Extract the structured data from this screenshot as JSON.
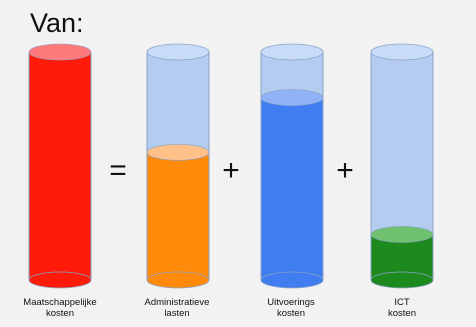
{
  "title": "Van:",
  "colors": {
    "background": "#f2f2f2",
    "empty_tube": "#a9c6f0",
    "outline": "#8aa3c6"
  },
  "operators": [
    "=",
    "+",
    "+"
  ],
  "cylinders": [
    {
      "label_line1": "Maatschappelijke",
      "label_line2": "kosten",
      "fill_fraction": 1.0,
      "fill_color": "#ff1a0a",
      "top_color": "#ff7a7a"
    },
    {
      "label_line1": "Administratieve",
      "label_line2": "lasten",
      "fill_fraction": 0.56,
      "fill_color": "#ff8a0a",
      "top_color": "#ffc08a"
    },
    {
      "label_line1": "Uitvoerings",
      "label_line2": "kosten",
      "fill_fraction": 0.8,
      "fill_color": "#3f7df0",
      "top_color": "#8fb3f5"
    },
    {
      "label_line1": "ICT",
      "label_line2": "kosten",
      "fill_fraction": 0.2,
      "fill_color": "#1c8a1c",
      "top_color": "#6fc06f"
    }
  ]
}
